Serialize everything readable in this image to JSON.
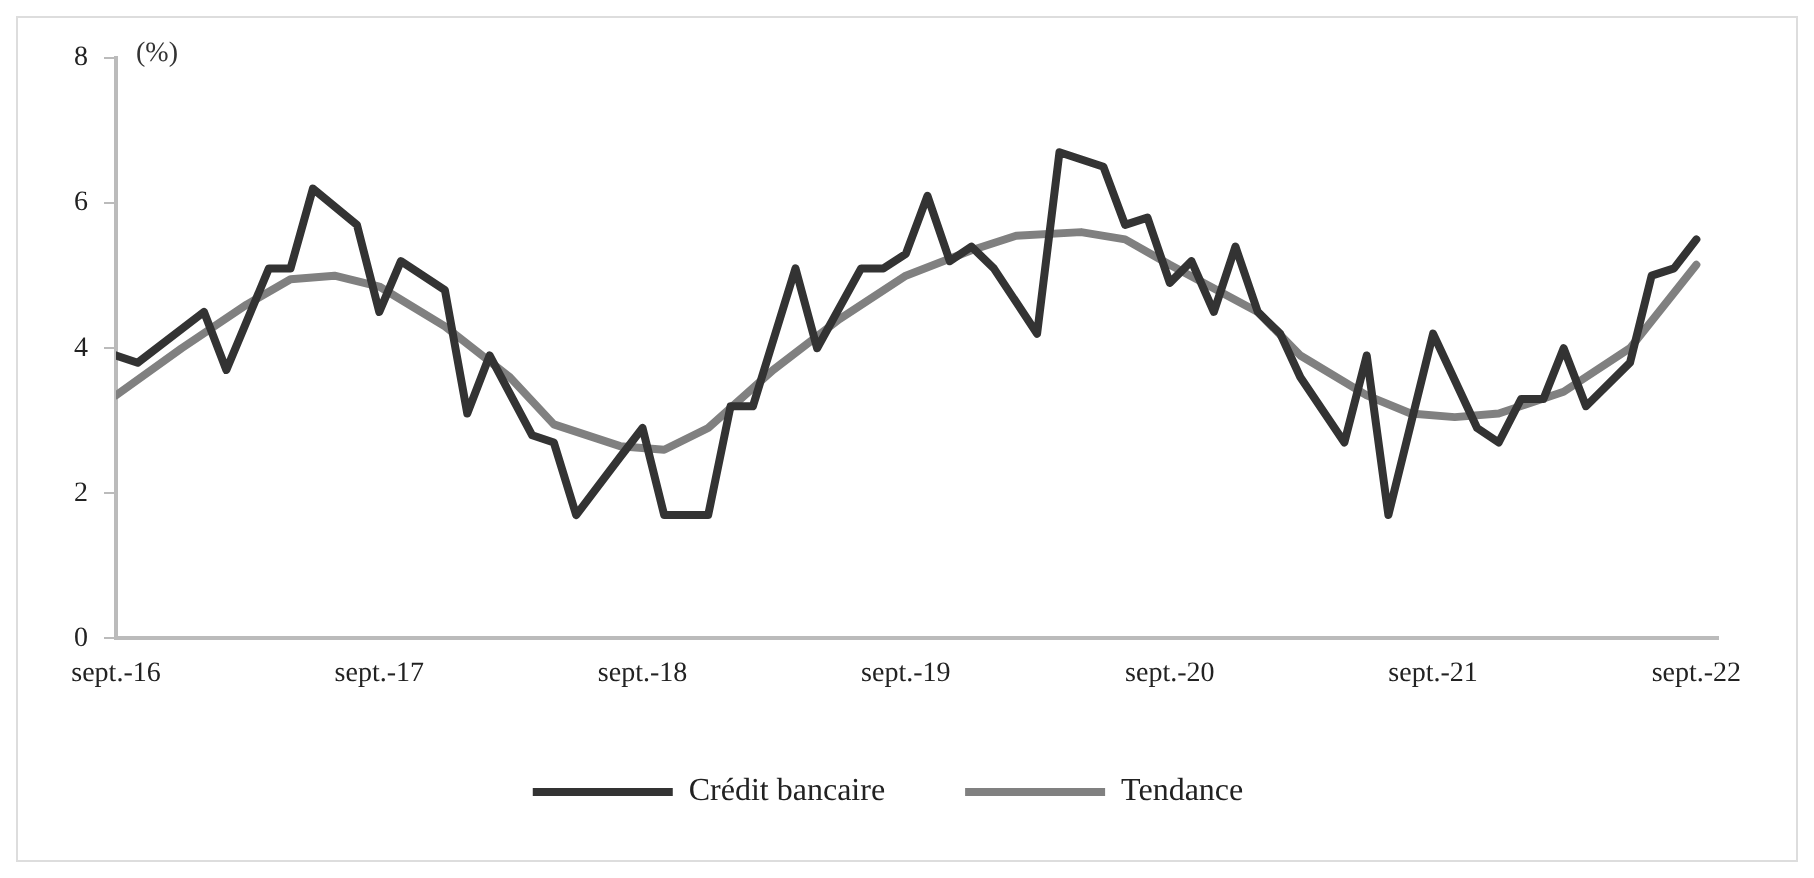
{
  "chart_data": {
    "type": "line",
    "ylabel": "(%)",
    "xlim": [
      "2016-09",
      "2022-10"
    ],
    "xticks": [
      {
        "value": "2016-09",
        "label": "sept.-16"
      },
      {
        "value": "2017-09",
        "label": "sept.-17"
      },
      {
        "value": "2018-09",
        "label": "sept.-18"
      },
      {
        "value": "2019-09",
        "label": "sept.-19"
      },
      {
        "value": "2020-09",
        "label": "sept.-20"
      },
      {
        "value": "2021-09",
        "label": "sept.-21"
      },
      {
        "value": "2022-09",
        "label": "sept.-22"
      }
    ],
    "ylim": [
      0,
      8
    ],
    "yticks": [
      0,
      2,
      4,
      6,
      8
    ],
    "grid": false,
    "legend": "bottom",
    "marker": "none",
    "line_style": "solid",
    "series": [
      {
        "name": "Crédit bancaire",
        "color": "#333333",
        "x": [
          "2016-09",
          "2016-10",
          "2017-01",
          "2017-02",
          "2017-04",
          "2017-05",
          "2017-06",
          "2017-08",
          "2017-09",
          "2017-10",
          "2017-12",
          "2018-01",
          "2018-02",
          "2018-04",
          "2018-05",
          "2018-06",
          "2018-08",
          "2018-09",
          "2018-10",
          "2018-12",
          "2019-01",
          "2019-02",
          "2019-04",
          "2019-05",
          "2019-07",
          "2019-08",
          "2019-09",
          "2019-10",
          "2019-11",
          "2019-12",
          "2020-01",
          "2020-03",
          "2020-04",
          "2020-06",
          "2020-07",
          "2020-08",
          "2020-09",
          "2020-10",
          "2020-11",
          "2020-12",
          "2021-01",
          "2021-02",
          "2021-03",
          "2021-05",
          "2021-06",
          "2021-07",
          "2021-09",
          "2021-11",
          "2021-12",
          "2022-01",
          "2022-02",
          "2022-03",
          "2022-04",
          "2022-06",
          "2022-07",
          "2022-08",
          "2022-09"
        ],
        "values": [
          3.9,
          3.8,
          4.5,
          3.7,
          5.1,
          5.1,
          6.2,
          5.7,
          4.5,
          5.2,
          4.8,
          3.1,
          3.9,
          2.8,
          2.7,
          1.7,
          2.5,
          2.9,
          1.7,
          1.7,
          3.2,
          3.2,
          5.1,
          4.0,
          5.1,
          5.1,
          5.3,
          6.1,
          5.2,
          5.4,
          5.1,
          4.2,
          6.7,
          6.5,
          5.7,
          5.8,
          4.9,
          5.2,
          4.5,
          5.4,
          4.5,
          4.2,
          3.6,
          2.7,
          3.9,
          1.7,
          4.2,
          2.9,
          2.7,
          3.3,
          3.3,
          4.0,
          3.2,
          3.8,
          5.0,
          5.1,
          5.5
        ]
      },
      {
        "name": "Tendance",
        "color": "#808080",
        "x": [
          "2016-09",
          "2016-12",
          "2017-03",
          "2017-05",
          "2017-07",
          "2017-09",
          "2017-12",
          "2018-03",
          "2018-05",
          "2018-08",
          "2018-10",
          "2018-12",
          "2019-03",
          "2019-06",
          "2019-09",
          "2019-12",
          "2020-02",
          "2020-05",
          "2020-07",
          "2020-09",
          "2021-01",
          "2021-03",
          "2021-06",
          "2021-08",
          "2021-10",
          "2021-12",
          "2022-03",
          "2022-06",
          "2022-09"
        ],
        "values": [
          3.35,
          4.0,
          4.6,
          4.95,
          5.0,
          4.85,
          4.3,
          3.6,
          2.95,
          2.65,
          2.6,
          2.9,
          3.7,
          4.4,
          5.0,
          5.35,
          5.55,
          5.6,
          5.5,
          5.15,
          4.5,
          3.9,
          3.35,
          3.1,
          3.05,
          3.1,
          3.4,
          4.0,
          5.15
        ]
      }
    ]
  }
}
